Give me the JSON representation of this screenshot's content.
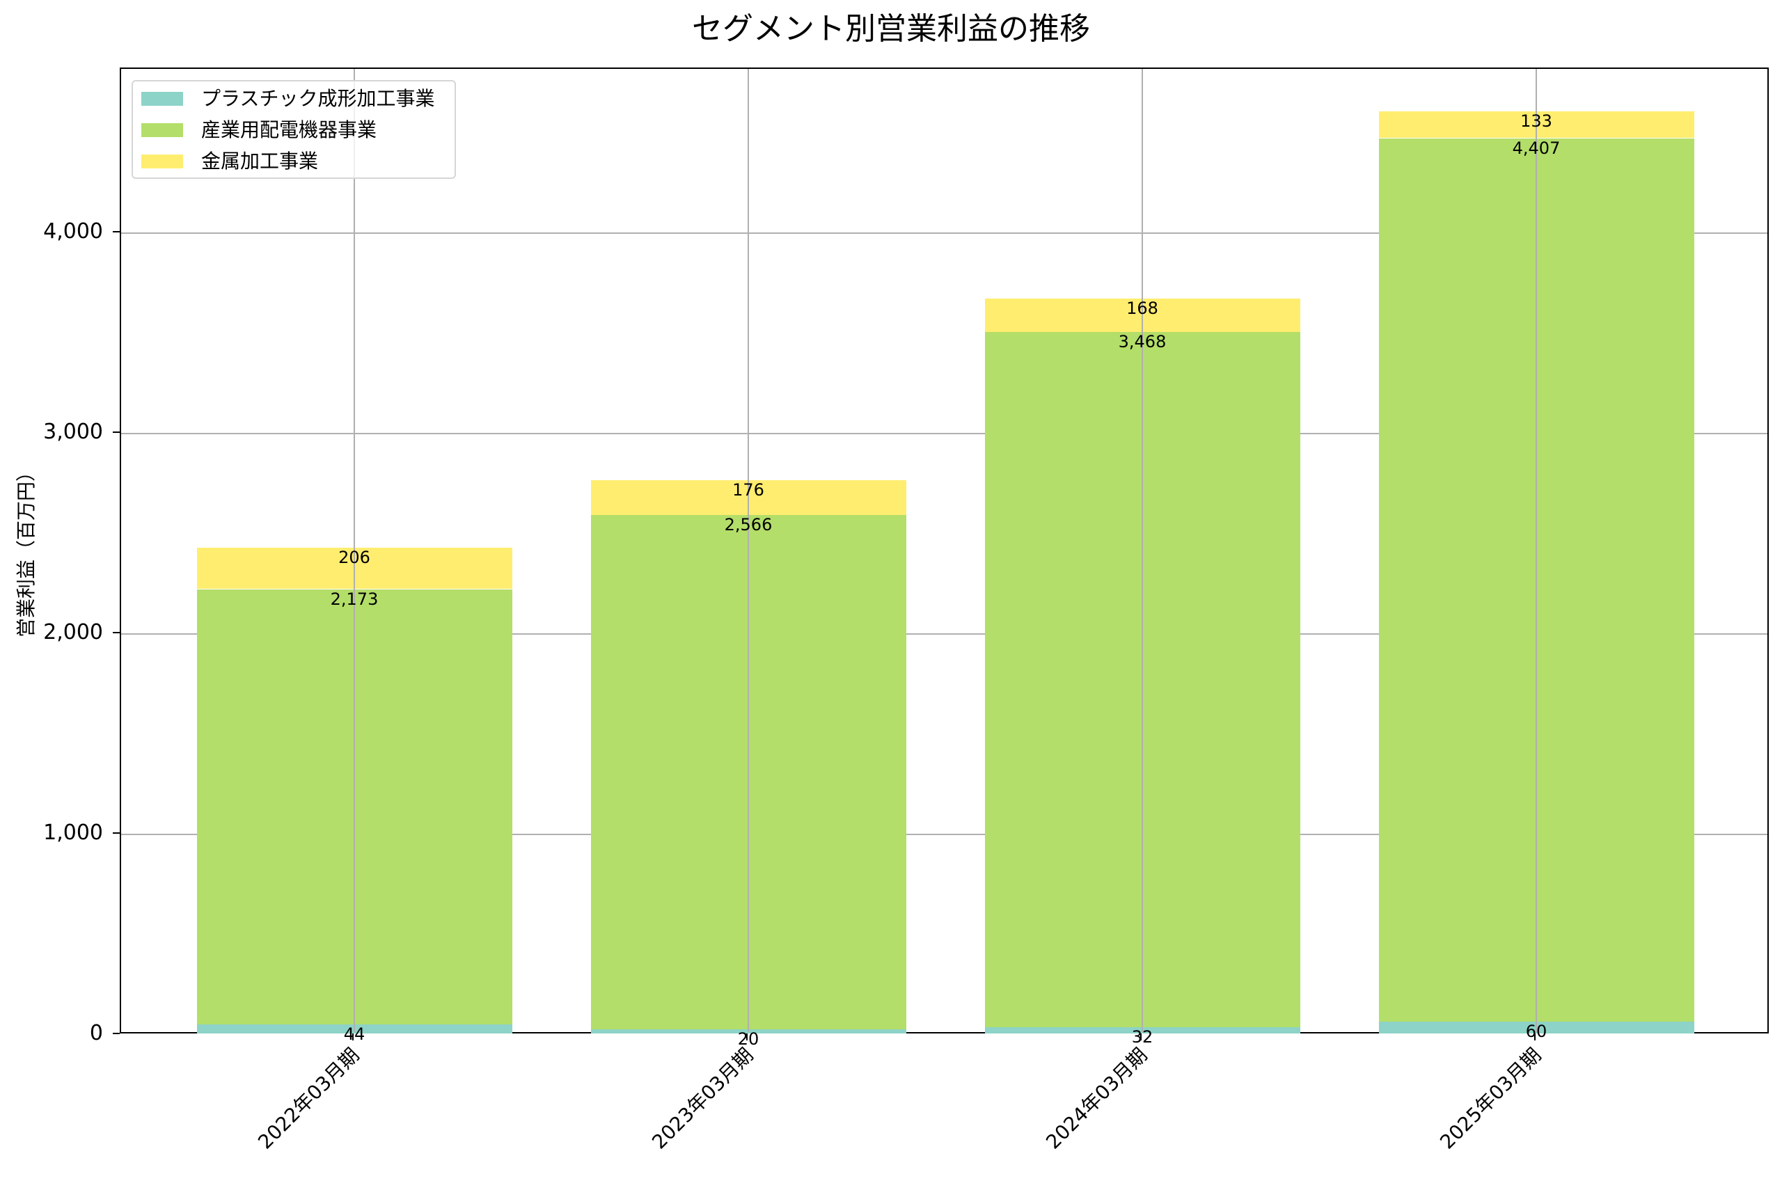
{
  "title": "セグメント別営業利益の推移",
  "y_axis": {
    "label": "営業利益（百万円）",
    "ticks": [
      "0",
      "1,000",
      "2,000",
      "3,000",
      "4,000"
    ]
  },
  "legend": {
    "items": [
      {
        "label": "プラスチック成形加工事業",
        "color": "#8dd3c7"
      },
      {
        "label": "産業用配電機器事業",
        "color": "#b3de69"
      },
      {
        "label": "金属加工事業",
        "color": "#ffed6f"
      }
    ]
  },
  "x_axis": {
    "ticks": [
      "2022年03月期",
      "2023年03月期",
      "2024年03月期",
      "2025年03月期"
    ]
  },
  "bars": [
    {
      "category": "2022年03月期",
      "segments": [
        {
          "value": 44,
          "label": "44"
        },
        {
          "value": 2173,
          "label": "2,173"
        },
        {
          "value": 206,
          "label": "206"
        }
      ]
    },
    {
      "category": "2023年03月期",
      "segments": [
        {
          "value": 20,
          "label": "20"
        },
        {
          "value": 2566,
          "label": "2,566"
        },
        {
          "value": 176,
          "label": "176"
        }
      ]
    },
    {
      "category": "2024年03月期",
      "segments": [
        {
          "value": 32,
          "label": "32"
        },
        {
          "value": 3468,
          "label": "3,468"
        },
        {
          "value": 168,
          "label": "168"
        }
      ]
    },
    {
      "category": "2025年03月期",
      "segments": [
        {
          "value": 60,
          "label": "60"
        },
        {
          "value": 4407,
          "label": "4,407"
        },
        {
          "value": 133,
          "label": "133"
        }
      ]
    }
  ],
  "colors": {
    "plastic": "#8dd3c7",
    "electrical": "#b3de69",
    "metal": "#ffed6f",
    "grid": "#b0b0b0"
  },
  "chart_data": {
    "type": "bar",
    "stacked": true,
    "title": "セグメント別営業利益の推移",
    "xlabel": "",
    "ylabel": "営業利益（百万円）",
    "categories": [
      "2022年03月期",
      "2023年03月期",
      "2024年03月期",
      "2025年03月期"
    ],
    "series": [
      {
        "name": "プラスチック成形加工事業",
        "values": [
          44,
          20,
          32,
          60
        ],
        "color": "#8dd3c7"
      },
      {
        "name": "産業用配電機器事業",
        "values": [
          2173,
          2566,
          3468,
          4407
        ],
        "color": "#b3de69"
      },
      {
        "name": "金属加工事業",
        "values": [
          206,
          176,
          168,
          133
        ],
        "color": "#ffed6f"
      }
    ],
    "ylim": [
      0,
      4820
    ],
    "yticks": [
      0,
      1000,
      2000,
      3000,
      4000
    ],
    "grid": true,
    "legend_position": "upper left",
    "xtick_rotation": 45
  }
}
